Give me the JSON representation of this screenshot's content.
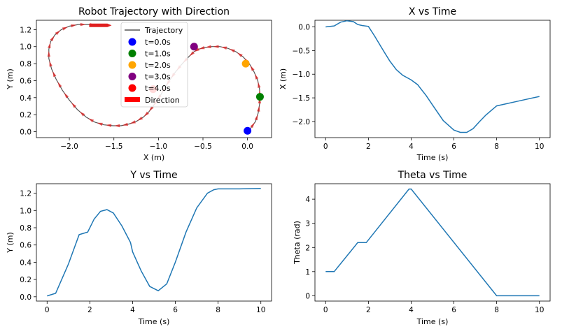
{
  "figure": {
    "colors": {
      "line": "#1f77b4",
      "traj": "#555555",
      "arrow": "#e02020",
      "axes": "#000000"
    }
  },
  "chart_data": [
    {
      "id": "traj",
      "type": "line",
      "title": "Robot Trajectory with Direction",
      "xlabel": "X (m)",
      "ylabel": "Y (m)",
      "xlim": [
        -2.37,
        0.27
      ],
      "ylim": [
        -0.07,
        1.31
      ],
      "xticks": [
        -2.0,
        -1.5,
        -1.0,
        -0.5,
        0.0
      ],
      "xtick_labels": [
        "−2.0",
        "−1.5",
        "−1.0",
        "−0.5",
        "0.0"
      ],
      "yticks": [
        0.0,
        0.2,
        0.4,
        0.6,
        0.8,
        1.0,
        1.2
      ],
      "ytick_labels": [
        "0.0",
        "0.2",
        "0.4",
        "0.6",
        "0.8",
        "1.0",
        "1.2"
      ],
      "series": [
        {
          "name": "Trajectory",
          "x": [
            0.0,
            0.035,
            0.09,
            0.12,
            0.135,
            0.14,
            0.135,
            0.115,
            0.075,
            0.02,
            -0.05,
            -0.13,
            -0.22,
            -0.31,
            -0.4,
            -0.48,
            -0.55,
            -0.6,
            -0.66,
            -0.74,
            -0.81,
            -0.87,
            -0.92,
            -0.97,
            -1.02,
            -1.06,
            -1.11,
            -1.17,
            -1.25,
            -1.33,
            -1.42,
            -1.51,
            -1.61,
            -1.71,
            -1.81,
            -1.91,
            -2.0,
            -2.08,
            -2.15,
            -2.2,
            -2.23,
            -2.23,
            -2.21,
            -2.16,
            -2.09,
            -2.0,
            -1.9,
            -1.79,
            -1.68,
            -1.62
          ],
          "y": [
            0.01,
            0.04,
            0.12,
            0.22,
            0.32,
            0.41,
            0.5,
            0.6,
            0.7,
            0.8,
            0.88,
            0.94,
            0.98,
            1.0,
            1.0,
            0.99,
            0.97,
            0.94,
            0.88,
            0.79,
            0.7,
            0.61,
            0.53,
            0.44,
            0.36,
            0.3,
            0.23,
            0.17,
            0.12,
            0.09,
            0.07,
            0.07,
            0.08,
            0.11,
            0.17,
            0.26,
            0.37,
            0.49,
            0.62,
            0.74,
            0.86,
            0.97,
            1.06,
            1.14,
            1.2,
            1.24,
            1.26,
            1.26,
            1.25,
            1.25
          ]
        }
      ],
      "markers": [
        {
          "name": "t=0.0s",
          "x": 0.0,
          "y": 0.01,
          "color": "#0000ff"
        },
        {
          "name": "t=1.0s",
          "x": 0.14,
          "y": 0.41,
          "color": "#008000"
        },
        {
          "name": "t=2.0s",
          "x": -0.02,
          "y": 0.8,
          "color": "#ffa500"
        },
        {
          "name": "t=3.0s",
          "x": -0.6,
          "y": 1.0,
          "color": "#800080"
        },
        {
          "name": "t=4.0s",
          "x": -1.06,
          "y": 0.5,
          "color": "#ff0000"
        }
      ],
      "legend": {
        "placement": "upper-center",
        "entries": [
          "Trajectory",
          "t=0.0s",
          "t=1.0s",
          "t=2.0s",
          "t=3.0s",
          "t=4.0s",
          "Direction"
        ]
      }
    },
    {
      "id": "x",
      "type": "line",
      "title": "X vs Time",
      "xlabel": "Time (s)",
      "ylabel": "X (m)",
      "xlim": [
        -0.5,
        10.5
      ],
      "ylim": [
        -2.34,
        0.14
      ],
      "xticks": [
        0,
        2,
        4,
        6,
        8,
        10
      ],
      "xtick_labels": [
        "0",
        "2",
        "4",
        "6",
        "8",
        "10"
      ],
      "yticks": [
        0.0,
        -0.5,
        -1.0,
        -1.5,
        -2.0
      ],
      "ytick_labels": [
        "0.0",
        "−0.5",
        "−1.0",
        "−1.5",
        "−2.0"
      ],
      "series": [
        {
          "x": [
            0,
            0.4,
            0.7,
            1.0,
            1.3,
            1.5,
            1.7,
            2.0,
            2.3,
            2.7,
            3.0,
            3.3,
            3.6,
            4.0,
            4.3,
            4.7,
            5.0,
            5.5,
            6.0,
            6.3,
            6.6,
            6.9,
            7.2,
            7.5,
            8.0,
            9.0,
            10.0
          ],
          "y": [
            0.0,
            0.02,
            0.1,
            0.13,
            0.11,
            0.05,
            0.03,
            0.01,
            -0.2,
            -0.5,
            -0.72,
            -0.9,
            -1.02,
            -1.12,
            -1.22,
            -1.45,
            -1.65,
            -1.98,
            -2.18,
            -2.23,
            -2.23,
            -2.15,
            -2.0,
            -1.86,
            -1.67,
            -1.57,
            -1.47
          ]
        }
      ]
    },
    {
      "id": "y",
      "type": "line",
      "title": "Y vs Time",
      "xlabel": "Time (s)",
      "ylabel": "Y (m)",
      "xlim": [
        -0.5,
        10.5
      ],
      "ylim": [
        -0.05,
        1.31
      ],
      "xticks": [
        0,
        2,
        4,
        6,
        8,
        10
      ],
      "xtick_labels": [
        "0",
        "2",
        "4",
        "6",
        "8",
        "10"
      ],
      "yticks": [
        0.0,
        0.2,
        0.4,
        0.6,
        0.8,
        1.0,
        1.2
      ],
      "ytick_labels": [
        "0.0",
        "0.2",
        "0.4",
        "0.6",
        "0.8",
        "1.0",
        "1.2"
      ],
      "series": [
        {
          "x": [
            0,
            0.4,
            1.0,
            1.5,
            1.9,
            2.2,
            2.5,
            2.8,
            3.1,
            3.5,
            3.9,
            4.0,
            4.4,
            4.8,
            5.2,
            5.6,
            6.0,
            6.5,
            7.0,
            7.5,
            7.8,
            8.0,
            9.0,
            10.0
          ],
          "y": [
            0.01,
            0.04,
            0.38,
            0.72,
            0.75,
            0.9,
            0.99,
            1.01,
            0.97,
            0.82,
            0.63,
            0.52,
            0.3,
            0.12,
            0.07,
            0.15,
            0.4,
            0.75,
            1.03,
            1.2,
            1.24,
            1.25,
            1.25,
            1.255
          ]
        }
      ]
    },
    {
      "id": "theta",
      "type": "line",
      "title": "Theta vs Time",
      "xlabel": "Time (s)",
      "ylabel": "Theta (rad)",
      "xlim": [
        -0.5,
        10.5
      ],
      "ylim": [
        -0.22,
        4.64
      ],
      "xticks": [
        0,
        2,
        4,
        6,
        8,
        10
      ],
      "xtick_labels": [
        "0",
        "2",
        "4",
        "6",
        "8",
        "10"
      ],
      "yticks": [
        0,
        1,
        2,
        3,
        4
      ],
      "ytick_labels": [
        "0",
        "1",
        "2",
        "3",
        "4"
      ],
      "series": [
        {
          "x": [
            0,
            0.4,
            1.5,
            1.9,
            3.9,
            4.0,
            8.0,
            10.0
          ],
          "y": [
            1.0,
            1.0,
            2.2,
            2.2,
            4.42,
            4.42,
            0.0,
            0.0
          ]
        }
      ]
    }
  ]
}
